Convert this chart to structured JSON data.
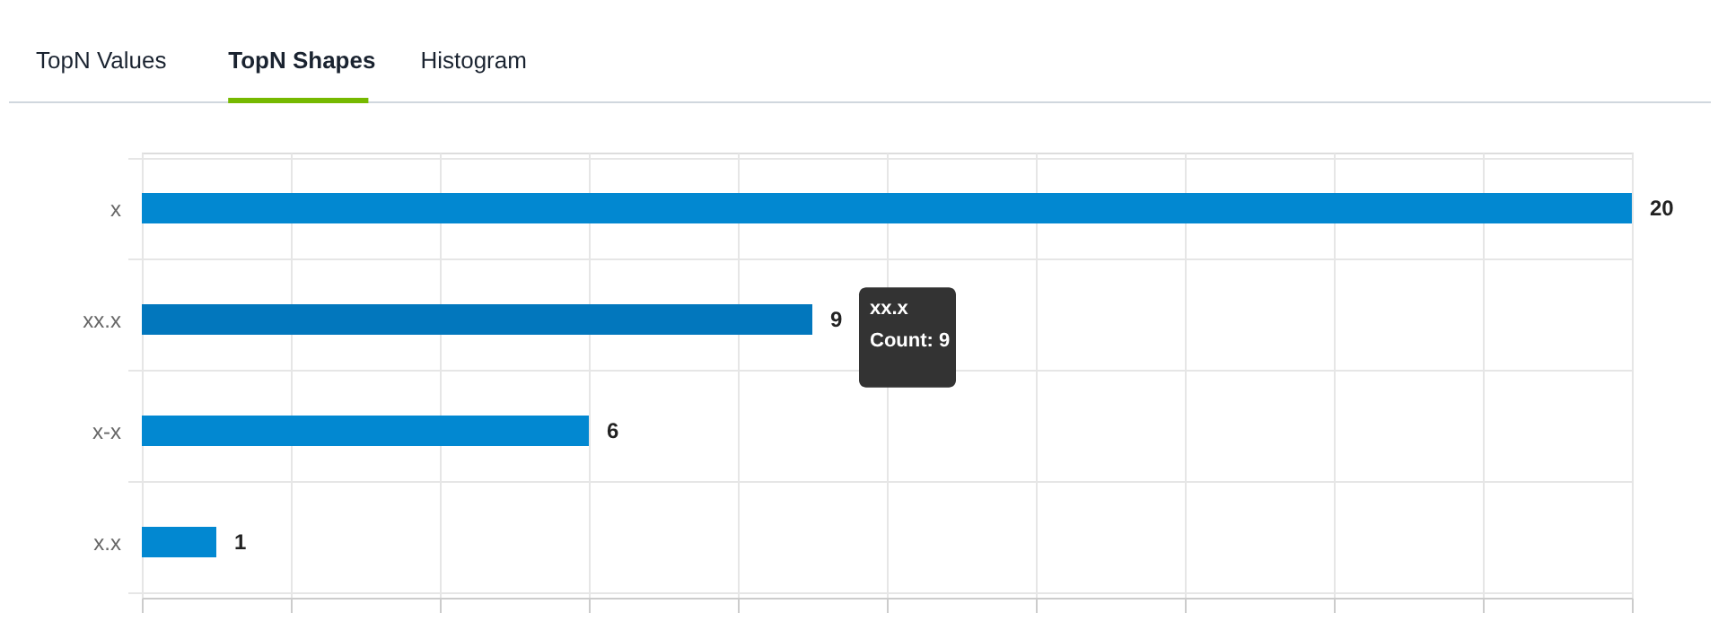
{
  "chart_data": {
    "type": "bar",
    "orientation": "horizontal",
    "categories": [
      "x",
      "xx.x",
      "x-x",
      "x.x"
    ],
    "values": [
      20,
      9,
      6,
      1
    ],
    "colors": [
      "#0288d1",
      "#0277bd",
      "#0288d1",
      "#0288d1"
    ],
    "xlim": [
      0,
      20
    ],
    "xticks": [
      {
        "value": 0,
        "label": null
      },
      {
        "value": 2,
        "label": null
      },
      {
        "value": 4,
        "label": null
      },
      {
        "value": 6,
        "label": null
      },
      {
        "value": 8,
        "label": null
      },
      {
        "value": 10,
        "label": null
      },
      {
        "value": 12,
        "label": null
      },
      {
        "value": 14,
        "label": null
      },
      {
        "value": 16,
        "label": null
      },
      {
        "value": 18,
        "label": null
      },
      {
        "value": 20,
        "label": null
      }
    ],
    "tick_labels": "y",
    "grid": true,
    "data_labels": true,
    "annotations": [
      "TopN Values",
      "TopN Shapes",
      "Histogram",
      {
        "text": "xx.x\nCount: 9",
        "x": 9,
        "y": "xx.x"
      }
    ]
  }
}
